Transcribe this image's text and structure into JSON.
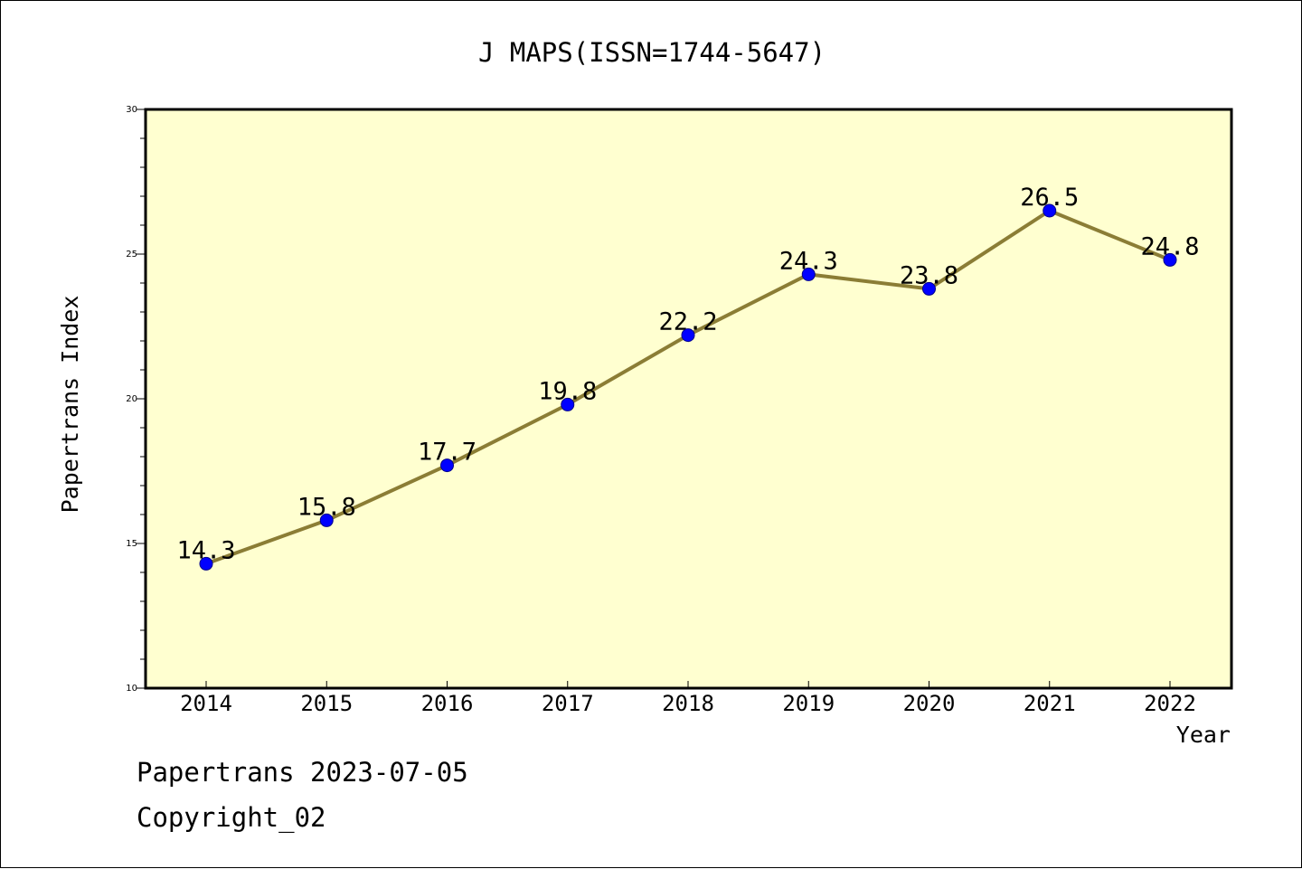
{
  "chart_data": {
    "type": "line",
    "title": "J MAPS(ISSN=1744-5647)",
    "xlabel": "Year",
    "ylabel": "Papertrans Index",
    "x": [
      "2014",
      "2015",
      "2016",
      "2017",
      "2018",
      "2019",
      "2020",
      "2021",
      "2022"
    ],
    "series": [
      {
        "values": [
          14.3,
          15.8,
          17.7,
          19.8,
          22.2,
          24.3,
          23.8,
          26.5,
          24.8
        ],
        "value_labels": [
          "14.3",
          "15.8",
          "17.7",
          "19.8",
          "22.2",
          "24.3",
          "23.8",
          "26.5",
          "24.8"
        ],
        "line_color": "#8b7d35",
        "marker_color": "#0000ff"
      }
    ],
    "ylim": [
      10,
      30
    ],
    "yticks": [
      10,
      15,
      20,
      25,
      30
    ],
    "ytick_labels": [
      "10",
      "15",
      "20",
      "25",
      "30"
    ],
    "grid": false,
    "plot_background": "#ffffd0"
  },
  "footer": {
    "line1": "Papertrans 2023-07-05",
    "line2": "Copyright_02"
  }
}
